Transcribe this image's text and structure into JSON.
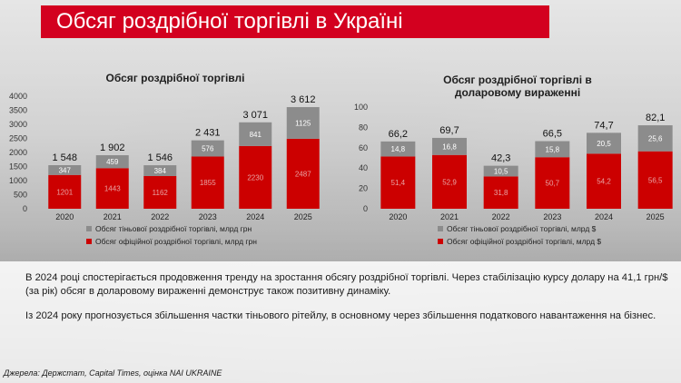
{
  "title": "Обсяг роздрібної торгівлі в Україні",
  "theme": {
    "official_color": "#cc0000",
    "shadow_color": "#8c8c8c",
    "title_bg": "#d3001f"
  },
  "chart_data": [
    {
      "type": "bar",
      "stacked": true,
      "title": "Обсяг роздрібної торгівлі",
      "categories": [
        "2020",
        "2021",
        "2022",
        "2023",
        "2024",
        "2025"
      ],
      "ylim": [
        0,
        4000
      ],
      "yticks": [
        0,
        500,
        1000,
        1500,
        2000,
        2500,
        3000,
        3500,
        4000
      ],
      "ytick_labels": [
        "0",
        "500",
        "1000",
        "1500",
        "2000",
        "2500",
        "3000",
        "3500",
        "4000"
      ],
      "totals": [
        1548,
        1902,
        1546,
        2431,
        3071,
        3612
      ],
      "total_labels": [
        "1 548",
        "1 902",
        "1 546",
        "2 431",
        "3 071",
        "3 612"
      ],
      "series": [
        {
          "name": "Обсяг офіційної роздрібної торгівлі, млрд грн",
          "color": "#cc0000",
          "values": [
            1201,
            1443,
            1162,
            1855,
            2230,
            2487
          ]
        },
        {
          "name": "Обсяг тіньової роздрібної торгівлі, млрд грн",
          "color": "#8c8c8c",
          "values": [
            347,
            459,
            384,
            576,
            841,
            1125
          ]
        }
      ],
      "legend_position": "bottom",
      "grid": false
    },
    {
      "type": "bar",
      "stacked": true,
      "title": "Обсяг роздрібної торгівлі в доларовому вираженні",
      "categories": [
        "2020",
        "2021",
        "2022",
        "2023",
        "2024",
        "2025"
      ],
      "ylim": [
        0,
        100
      ],
      "yticks": [
        0,
        20,
        40,
        60,
        80,
        100
      ],
      "ytick_labels": [
        "0",
        "20",
        "40",
        "60",
        "80",
        "100"
      ],
      "totals": [
        66.2,
        69.7,
        42.3,
        66.5,
        74.7,
        82.1
      ],
      "total_labels": [
        "66,2",
        "69,7",
        "42,3",
        "66,5",
        "74,7",
        "82,1"
      ],
      "series": [
        {
          "name": "Обсяг офіційної роздрібної торгівлі, млрд $",
          "color": "#cc0000",
          "values": [
            51.4,
            52.9,
            31.8,
            50.7,
            54.2,
            56.5
          ]
        },
        {
          "name": "Обсяг тіньової роздрібної торгівлі, млрд $",
          "color": "#8c8c8c",
          "values": [
            14.8,
            16.8,
            10.5,
            15.8,
            20.5,
            25.6
          ]
        }
      ],
      "legend_position": "bottom",
      "grid": false
    }
  ],
  "body": {
    "paragraph1": "В 2024 році спостерігається продовження тренду на зростання обсягу роздрібної торгівлі. Через стабілізацію курсу долару на 41,1 грн/$ (за рік) обсяг в доларовому вираженні демонструє також позитивну динаміку.",
    "paragraph2": "Із 2024 року прогнозується збільшення частки тіньового рітейлу, в основному через збільшення податкового навантаження на бізнес."
  },
  "source": "Джерела: Держстат, Capital Times, оцінка NAI UKRAINE"
}
